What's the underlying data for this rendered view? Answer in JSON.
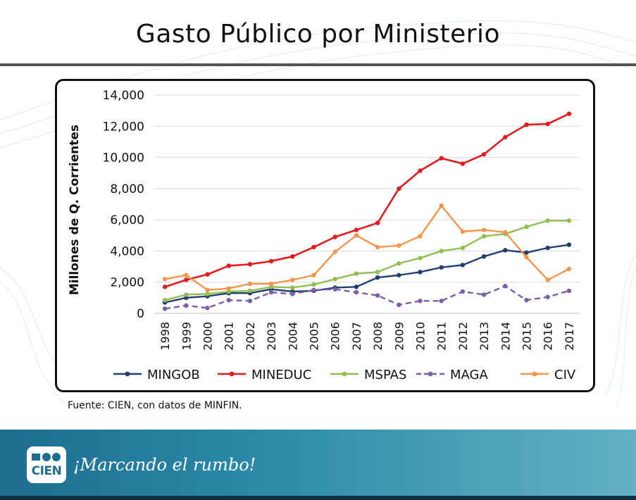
{
  "slide": {
    "title": "Gasto Público por Ministerio",
    "source": "Fuente: CIEN, con datos de MINFIN.",
    "footer_tagline": "¡Marcando el rumbo!",
    "logo_text": "CIEN"
  },
  "colors": {
    "title_rule": "#555555",
    "footer": "#2a8aa8",
    "MINGOB": "#1f3f6e",
    "MINEDUC": "#e41a1c",
    "MSPAS": "#8fbf4f",
    "MAGA": "#7b5ea7",
    "CIV": "#f4954b"
  },
  "chart_data": {
    "type": "line",
    "title": "",
    "xlabel": "",
    "ylabel": "Millones de Q. Corrientes",
    "ylim": [
      0,
      14000
    ],
    "yticks": [
      "0",
      "2,000",
      "4,000",
      "6,000",
      "8,000",
      "10,000",
      "12,000",
      "14,000"
    ],
    "ytick_values": [
      0,
      2000,
      4000,
      6000,
      8000,
      10000,
      12000,
      14000
    ],
    "grid": true,
    "legend": "bottom",
    "categories": [
      "1998",
      "1999",
      "2000",
      "2001",
      "2002",
      "2003",
      "2004",
      "2005",
      "2006",
      "2007",
      "2008",
      "2009",
      "2010",
      "2011",
      "2012",
      "2013",
      "2014",
      "2015",
      "2016",
      "2017"
    ],
    "series": [
      {
        "name": "MINGOB",
        "color": "#1f3f6e",
        "dashed": false,
        "values": [
          700,
          1000,
          1100,
          1300,
          1300,
          1550,
          1400,
          1450,
          1650,
          1700,
          2300,
          2450,
          2650,
          2950,
          3100,
          3650,
          4050,
          3900,
          4200,
          4400
        ]
      },
      {
        "name": "MINEDUC",
        "color": "#e41a1c",
        "dashed": false,
        "values": [
          1700,
          2150,
          2500,
          3050,
          3150,
          3350,
          3650,
          4250,
          4900,
          5350,
          5800,
          8000,
          9150,
          9950,
          9600,
          10200,
          11300,
          12100,
          12150,
          12800
        ]
      },
      {
        "name": "MSPAS",
        "color": "#8fbf4f",
        "dashed": false,
        "values": [
          850,
          1200,
          1250,
          1400,
          1450,
          1700,
          1650,
          1850,
          2200,
          2550,
          2650,
          3200,
          3550,
          4000,
          4200,
          4950,
          5100,
          5550,
          5950,
          5950
        ]
      },
      {
        "name": "MAGA",
        "color": "#7b5ea7",
        "dashed": true,
        "values": [
          300,
          500,
          350,
          850,
          800,
          1350,
          1250,
          1500,
          1550,
          1350,
          1150,
          550,
          800,
          800,
          1400,
          1200,
          1750,
          850,
          1050,
          1450
        ]
      },
      {
        "name": "CIV",
        "color": "#f4954b",
        "dashed": false,
        "values": [
          2200,
          2450,
          1500,
          1600,
          1900,
          1900,
          2150,
          2450,
          3950,
          5000,
          4250,
          4350,
          4950,
          6900,
          5250,
          5350,
          5200,
          3600,
          2150,
          2850
        ]
      }
    ]
  }
}
